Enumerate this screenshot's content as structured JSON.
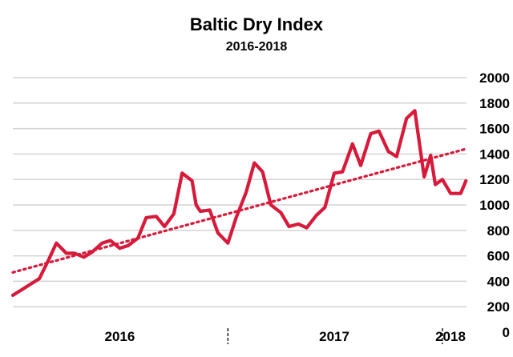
{
  "chart_data": {
    "type": "line",
    "title": "Baltic Dry Index",
    "subtitle": "2016-2018",
    "xlabel": "",
    "ylabel": "",
    "ylim": [
      0,
      2000
    ],
    "y_ticks": [
      "2000",
      "1800",
      "1600",
      "1400",
      "1200",
      "1000",
      "800",
      "600",
      "400",
      "200",
      "0"
    ],
    "x_ticks": [
      "2016",
      "2017",
      "2018"
    ],
    "x_range": [
      "2016-01",
      "2018-02"
    ],
    "grid": true,
    "legend": "none",
    "colors": {
      "series": "#d7193a",
      "trend": "#d7193a",
      "grid": "#d3d3d3"
    },
    "series": [
      {
        "style": "solid",
        "x": [
          "2016-01-01",
          "2016-01-15",
          "2016-02-01",
          "2016-02-15",
          "2016-03-01",
          "2016-03-15",
          "2016-04-01",
          "2016-04-15",
          "2016-05-01",
          "2016-05-15",
          "2016-06-01",
          "2016-06-15",
          "2016-07-01",
          "2016-07-15",
          "2016-08-01",
          "2016-08-15",
          "2016-09-01",
          "2016-09-15",
          "2016-10-01",
          "2016-10-15",
          "2016-11-01",
          "2016-11-08",
          "2016-11-15",
          "2016-12-01",
          "2016-12-15",
          "2017-01-01",
          "2017-01-15",
          "2017-02-01",
          "2017-02-15",
          "2017-03-01",
          "2017-03-15",
          "2017-04-01",
          "2017-04-15",
          "2017-05-01",
          "2017-05-15",
          "2017-06-01",
          "2017-06-15",
          "2017-07-01",
          "2017-07-15",
          "2017-08-01",
          "2017-08-15",
          "2017-09-01",
          "2017-09-15",
          "2017-10-01",
          "2017-10-15",
          "2017-11-01",
          "2017-11-15",
          "2017-12-01",
          "2017-12-12",
          "2017-12-20",
          "2018-01-01",
          "2018-01-15",
          "2018-02-01",
          "2018-02-10"
        ],
        "values": [
          290,
          330,
          380,
          420,
          560,
          700,
          620,
          620,
          590,
          630,
          700,
          720,
          660,
          680,
          740,
          900,
          910,
          830,
          930,
          1250,
          1190,
          1000,
          950,
          960,
          780,
          700,
          900,
          1100,
          1330,
          1260,
          1000,
          940,
          830,
          850,
          820,
          920,
          980,
          1250,
          1260,
          1480,
          1310,
          1560,
          1580,
          1420,
          1380,
          1680,
          1740,
          1220,
          1390,
          1160,
          1200,
          1090,
          1090,
          1190
        ]
      },
      {
        "style": "dotted-trendline",
        "x": [
          "2016-01-01",
          "2018-02-10"
        ],
        "values": [
          470,
          1440
        ]
      }
    ]
  }
}
